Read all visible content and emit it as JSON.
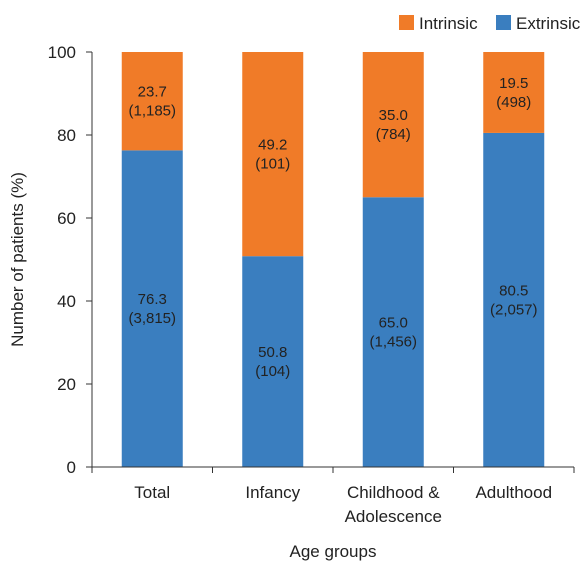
{
  "chart_data": {
    "type": "bar",
    "stacked": true,
    "categories": [
      [
        "Total"
      ],
      [
        "Infancy"
      ],
      [
        "Childhood &",
        "Adolescence"
      ],
      [
        "Adulthood"
      ]
    ],
    "series": [
      {
        "name": "Extrinsic",
        "color": "#3a7ebf",
        "values": [
          76.3,
          50.8,
          65.0,
          80.5
        ],
        "labels": [
          [
            "76.3",
            "(3,815)"
          ],
          [
            "50.8",
            "(104)"
          ],
          [
            "65.0",
            "(1,456)"
          ],
          [
            "80.5",
            "(2,057)"
          ]
        ]
      },
      {
        "name": "Intrinsic",
        "color": "#f07b28",
        "values": [
          23.7,
          49.2,
          35.0,
          19.5
        ],
        "labels": [
          [
            "23.7",
            "(1,185)"
          ],
          [
            "49.2",
            "(101)"
          ],
          [
            "35.0",
            "(784)"
          ],
          [
            "19.5",
            "(498)"
          ]
        ]
      }
    ],
    "xlabel": "Age groups",
    "ylabel": "Number of patients (%)",
    "ylim": [
      0,
      100
    ],
    "yticks": [
      "0",
      "20",
      "40",
      "60",
      "80",
      "100"
    ],
    "legend_position": "top-right",
    "grid": false
  }
}
